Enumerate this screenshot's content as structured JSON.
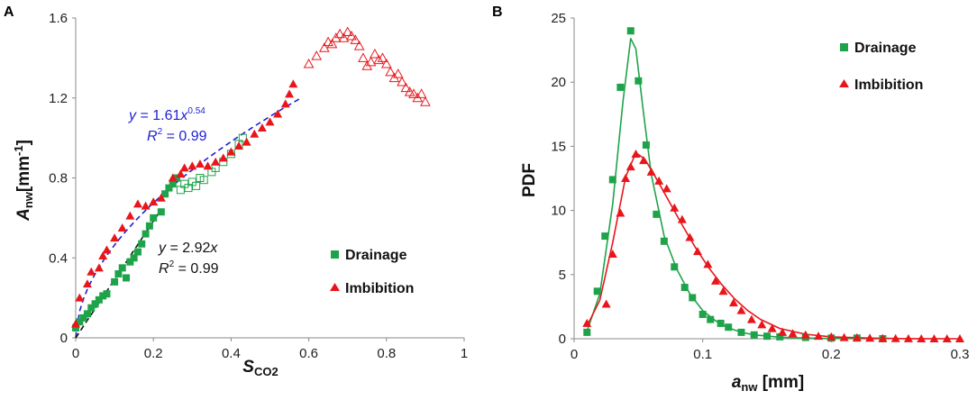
{
  "chart_data": [
    {
      "panel_label": "A",
      "type": "scatter",
      "xlabel": "S",
      "xlabel_sub": "CO2",
      "ylabel": "A",
      "ylabel_sub": "nw",
      "ylabel_unit": "[mm",
      "ylabel_unit_sup": "-1",
      "ylabel_unit_close": "]",
      "xlim": [
        0,
        1
      ],
      "ylim": [
        0,
        1.6
      ],
      "xticks": [
        "0",
        "0.2",
        "0.4",
        "0.6",
        "0.8",
        "1"
      ],
      "yticks": [
        "0",
        "0.4",
        "0.8",
        "1.2",
        "1.6"
      ],
      "legend": {
        "position": "lower-right",
        "items": [
          {
            "label": "Drainage",
            "color": "#1FA34A",
            "marker": "square"
          },
          {
            "label": "Imbibition",
            "color": "#E8161B",
            "marker": "triangle"
          }
        ]
      },
      "fits": [
        {
          "name": "imbibition-fit",
          "color": "#1F1FD6",
          "dash": true,
          "a": 1.61,
          "b": 0.54,
          "x_range": [
            0,
            0.58
          ],
          "eq_y": "y",
          "eq_mid": " = 1.61",
          "eq_x": "x",
          "eq_exp": "0.54",
          "r2_r": "R",
          "r2_sup": "2",
          "r2_val": " = 0.99"
        },
        {
          "name": "drainage-fit",
          "color": "#111111",
          "dash": true,
          "a": 2.92,
          "b": 1.0,
          "x_range": [
            0,
            0.22
          ],
          "eq_y": "y",
          "eq_mid": " = 2.92",
          "eq_x": "x",
          "eq_exp": "",
          "r2_r": "R",
          "r2_sup": "2",
          "r2_val": " = 0.99"
        }
      ],
      "series": [
        {
          "name": "Drainage",
          "marker": "square",
          "filled": true,
          "color": "#1FA34A",
          "points": [
            [
              0.0,
              0.05
            ],
            [
              0.01,
              0.08
            ],
            [
              0.02,
              0.1
            ],
            [
              0.03,
              0.12
            ],
            [
              0.04,
              0.15
            ],
            [
              0.05,
              0.17
            ],
            [
              0.06,
              0.19
            ],
            [
              0.07,
              0.21
            ],
            [
              0.08,
              0.22
            ],
            [
              0.1,
              0.28
            ],
            [
              0.11,
              0.32
            ],
            [
              0.12,
              0.35
            ],
            [
              0.13,
              0.3
            ],
            [
              0.14,
              0.38
            ],
            [
              0.15,
              0.4
            ],
            [
              0.16,
              0.43
            ],
            [
              0.17,
              0.47
            ],
            [
              0.18,
              0.52
            ],
            [
              0.19,
              0.56
            ],
            [
              0.2,
              0.6
            ],
            [
              0.22,
              0.63
            ],
            [
              0.23,
              0.72
            ],
            [
              0.24,
              0.75
            ],
            [
              0.25,
              0.77
            ],
            [
              0.26,
              0.8
            ]
          ]
        },
        {
          "name": "Drainage (open)",
          "marker": "square",
          "filled": false,
          "color": "#1FA34A",
          "points": [
            [
              0.27,
              0.74
            ],
            [
              0.28,
              0.77
            ],
            [
              0.29,
              0.75
            ],
            [
              0.3,
              0.78
            ],
            [
              0.31,
              0.76
            ],
            [
              0.32,
              0.8
            ],
            [
              0.33,
              0.79
            ],
            [
              0.35,
              0.83
            ],
            [
              0.36,
              0.85
            ],
            [
              0.38,
              0.88
            ],
            [
              0.4,
              0.92
            ],
            [
              0.42,
              0.97
            ],
            [
              0.43,
              1.0
            ]
          ]
        },
        {
          "name": "Imbibition",
          "marker": "triangle",
          "filled": true,
          "color": "#E8161B",
          "points": [
            [
              0.0,
              0.07
            ],
            [
              0.01,
              0.2
            ],
            [
              0.03,
              0.27
            ],
            [
              0.04,
              0.33
            ],
            [
              0.06,
              0.35
            ],
            [
              0.07,
              0.41
            ],
            [
              0.08,
              0.44
            ],
            [
              0.1,
              0.5
            ],
            [
              0.12,
              0.55
            ],
            [
              0.14,
              0.61
            ],
            [
              0.16,
              0.67
            ],
            [
              0.18,
              0.66
            ],
            [
              0.2,
              0.68
            ],
            [
              0.22,
              0.7
            ],
            [
              0.25,
              0.8
            ],
            [
              0.27,
              0.82
            ],
            [
              0.28,
              0.85
            ],
            [
              0.3,
              0.86
            ],
            [
              0.32,
              0.87
            ],
            [
              0.34,
              0.86
            ],
            [
              0.36,
              0.88
            ],
            [
              0.38,
              0.9
            ],
            [
              0.4,
              0.93
            ],
            [
              0.42,
              0.96
            ],
            [
              0.44,
              0.98
            ],
            [
              0.46,
              1.02
            ],
            [
              0.48,
              1.05
            ],
            [
              0.5,
              1.08
            ],
            [
              0.52,
              1.12
            ],
            [
              0.54,
              1.17
            ],
            [
              0.55,
              1.22
            ],
            [
              0.56,
              1.27
            ]
          ]
        },
        {
          "name": "Imbibition (open)",
          "marker": "triangle",
          "filled": false,
          "color": "#E8161B",
          "points": [
            [
              0.6,
              1.37
            ],
            [
              0.62,
              1.41
            ],
            [
              0.64,
              1.45
            ],
            [
              0.65,
              1.48
            ],
            [
              0.66,
              1.47
            ],
            [
              0.67,
              1.5
            ],
            [
              0.68,
              1.52
            ],
            [
              0.69,
              1.5
            ],
            [
              0.7,
              1.53
            ],
            [
              0.71,
              1.51
            ],
            [
              0.72,
              1.49
            ],
            [
              0.73,
              1.46
            ],
            [
              0.74,
              1.4
            ],
            [
              0.75,
              1.36
            ],
            [
              0.76,
              1.38
            ],
            [
              0.77,
              1.42
            ],
            [
              0.78,
              1.39
            ],
            [
              0.79,
              1.4
            ],
            [
              0.8,
              1.37
            ],
            [
              0.81,
              1.33
            ],
            [
              0.82,
              1.3
            ],
            [
              0.83,
              1.32
            ],
            [
              0.84,
              1.28
            ],
            [
              0.85,
              1.25
            ],
            [
              0.86,
              1.23
            ],
            [
              0.87,
              1.22
            ],
            [
              0.88,
              1.2
            ],
            [
              0.89,
              1.22
            ],
            [
              0.9,
              1.18
            ]
          ]
        }
      ]
    },
    {
      "panel_label": "B",
      "type": "scatter",
      "xlabel": "a",
      "xlabel_sub": "nw",
      "xlabel_unit": " [mm]",
      "ylabel": "PDF",
      "xlim": [
        0,
        0.3
      ],
      "ylim": [
        0,
        25
      ],
      "xticks": [
        "0",
        "0.1",
        "0.2",
        "0.3"
      ],
      "yticks": [
        "0",
        "5",
        "10",
        "15",
        "20",
        "25"
      ],
      "legend": {
        "position": "top-right",
        "items": [
          {
            "label": "Drainage",
            "color": "#1FA34A",
            "marker": "square"
          },
          {
            "label": "Imbibition",
            "color": "#E8161B",
            "marker": "triangle"
          }
        ]
      },
      "series": [
        {
          "name": "Drainage",
          "marker": "square",
          "color": "#1FA34A",
          "points": [
            [
              0.01,
              0.5
            ],
            [
              0.018,
              3.7
            ],
            [
              0.024,
              8.0
            ],
            [
              0.03,
              12.4
            ],
            [
              0.036,
              19.6
            ],
            [
              0.044,
              24.0
            ],
            [
              0.05,
              20.1
            ],
            [
              0.056,
              15.1
            ],
            [
              0.064,
              9.7
            ],
            [
              0.07,
              7.6
            ],
            [
              0.078,
              5.6
            ],
            [
              0.086,
              4.0
            ],
            [
              0.092,
              3.2
            ],
            [
              0.1,
              1.9
            ],
            [
              0.106,
              1.5
            ],
            [
              0.114,
              1.2
            ],
            [
              0.12,
              0.9
            ],
            [
              0.13,
              0.5
            ],
            [
              0.14,
              0.3
            ],
            [
              0.15,
              0.2
            ],
            [
              0.16,
              0.15
            ],
            [
              0.18,
              0.1
            ],
            [
              0.2,
              0.05
            ],
            [
              0.22,
              0.05
            ],
            [
              0.24,
              0.0
            ]
          ],
          "fit": [
            [
              0.01,
              0.6
            ],
            [
              0.02,
              3.5
            ],
            [
              0.03,
              10.5
            ],
            [
              0.038,
              18.5
            ],
            [
              0.044,
              23.4
            ],
            [
              0.048,
              22.6
            ],
            [
              0.054,
              17.6
            ],
            [
              0.06,
              12.8
            ],
            [
              0.07,
              8.0
            ],
            [
              0.08,
              5.4
            ],
            [
              0.09,
              3.5
            ],
            [
              0.1,
              2.2
            ],
            [
              0.11,
              1.4
            ],
            [
              0.12,
              0.85
            ],
            [
              0.13,
              0.5
            ],
            [
              0.14,
              0.3
            ],
            [
              0.16,
              0.12
            ],
            [
              0.18,
              0.05
            ],
            [
              0.2,
              0.02
            ],
            [
              0.24,
              0.0
            ]
          ]
        },
        {
          "name": "Imbibition",
          "marker": "triangle",
          "color": "#E8161B",
          "points": [
            [
              0.01,
              1.2
            ],
            [
              0.025,
              2.7
            ],
            [
              0.03,
              6.6
            ],
            [
              0.036,
              9.8
            ],
            [
              0.04,
              12.5
            ],
            [
              0.044,
              13.4
            ],
            [
              0.048,
              14.4
            ],
            [
              0.054,
              13.9
            ],
            [
              0.06,
              13.0
            ],
            [
              0.066,
              12.3
            ],
            [
              0.072,
              11.7
            ],
            [
              0.078,
              10.2
            ],
            [
              0.084,
              9.3
            ],
            [
              0.09,
              7.9
            ],
            [
              0.096,
              6.8
            ],
            [
              0.104,
              5.8
            ],
            [
              0.11,
              4.5
            ],
            [
              0.116,
              3.7
            ],
            [
              0.124,
              2.8
            ],
            [
              0.13,
              2.2
            ],
            [
              0.138,
              1.5
            ],
            [
              0.146,
              1.1
            ],
            [
              0.154,
              0.8
            ],
            [
              0.162,
              0.5
            ],
            [
              0.17,
              0.4
            ],
            [
              0.18,
              0.3
            ],
            [
              0.19,
              0.2
            ],
            [
              0.2,
              0.15
            ],
            [
              0.21,
              0.1
            ],
            [
              0.22,
              0.08
            ],
            [
              0.23,
              0.05
            ],
            [
              0.24,
              0.03
            ],
            [
              0.25,
              0.02
            ],
            [
              0.26,
              0.01
            ],
            [
              0.27,
              0.0
            ],
            [
              0.28,
              0.0
            ],
            [
              0.29,
              0.0
            ],
            [
              0.3,
              0.0
            ]
          ],
          "fit": [
            [
              0.01,
              1.0
            ],
            [
              0.02,
              3.0
            ],
            [
              0.03,
              7.5
            ],
            [
              0.04,
              12.6
            ],
            [
              0.048,
              14.5
            ],
            [
              0.055,
              14.0
            ],
            [
              0.065,
              12.3
            ],
            [
              0.075,
              10.5
            ],
            [
              0.085,
              8.7
            ],
            [
              0.095,
              7.0
            ],
            [
              0.105,
              5.5
            ],
            [
              0.115,
              4.2
            ],
            [
              0.125,
              3.1
            ],
            [
              0.135,
              2.2
            ],
            [
              0.145,
              1.5
            ],
            [
              0.16,
              0.8
            ],
            [
              0.18,
              0.35
            ],
            [
              0.2,
              0.15
            ],
            [
              0.23,
              0.05
            ],
            [
              0.26,
              0.01
            ],
            [
              0.3,
              0.0
            ]
          ]
        }
      ]
    }
  ]
}
